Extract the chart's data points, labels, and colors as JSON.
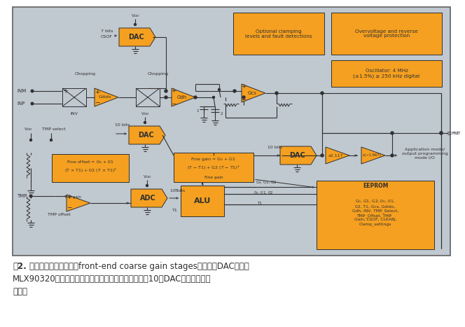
{
  "bg_outer": "#f2f2f2",
  "bg_inner": "#c0c8d0",
  "orange": "#f5a020",
  "dark": "#303030",
  "white": "#ffffff",
  "fig_w": 6.64,
  "fig_h": 4.67,
  "dpi": 100,
  "cap1_bold": "图2.",
  "cap1_rest": " 除了前端粗调增益级（front-end coarse gain stages）的两个DAC以外，",
  "cap2": "MLX90320传感器接口的架构还在输出级有一个额外的10位DAC，以保证精确",
  "cap3": "校准。"
}
